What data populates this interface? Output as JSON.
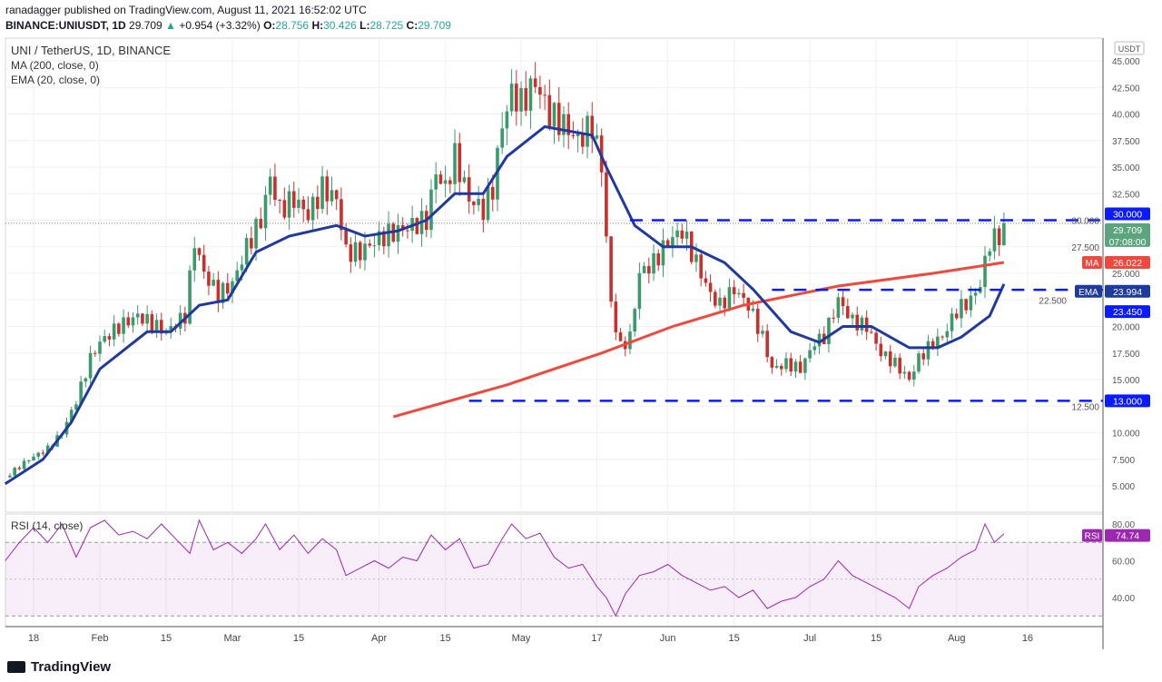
{
  "header": {
    "publisher": "ranadagger published on TradingView.com, August 11, 2021 16:52:02 UTC",
    "symbol": "BINANCE:UNIUSDT, 1D",
    "last": "29.709",
    "change": "+0.954 (+3.32%)",
    "o_label": "O:",
    "o": "28.756",
    "h_label": "H:",
    "h": "30.426",
    "l_label": "L:",
    "l": "28.725",
    "c_label": "C:",
    "c": "29.709"
  },
  "legend": {
    "title": "UNI / TetherUS, 1D, BINANCE",
    "ma": "MA (200, close, 0)",
    "ema": "EMA (20, close, 0)",
    "rsi": "RSI (14, close)"
  },
  "axis": {
    "currency": "USDT",
    "price_ticks": [
      "5.000",
      "7.500",
      "10.000",
      "12.500",
      "15.000",
      "17.500",
      "20.000",
      "22.500",
      "25.000",
      "27.500",
      "30.000",
      "32.500",
      "35.000",
      "37.500",
      "40.000",
      "42.500",
      "45.000"
    ],
    "rsi_ticks": [
      "40.00",
      "60.00",
      "80.00"
    ],
    "time_ticks": [
      [
        "18",
        0
      ],
      [
        "Feb",
        14
      ],
      [
        "15",
        28
      ],
      [
        "Mar",
        42
      ],
      [
        "15",
        56
      ],
      [
        "Apr",
        73
      ],
      [
        "15",
        87
      ],
      [
        "May",
        103
      ],
      [
        "17",
        119
      ],
      [
        "Jun",
        134
      ],
      [
        "15",
        148
      ],
      [
        "Jul",
        164
      ],
      [
        "15",
        178
      ],
      [
        "Aug",
        195
      ],
      [
        "16",
        210
      ]
    ]
  },
  "labels": {
    "level_30": "30.000",
    "price": "29.709",
    "countdown": "07:08:00",
    "ma_tag": "MA",
    "ma_val": "26.022",
    "ema_tag": "EMA",
    "ema_val": "23.994",
    "level_2345": "23.450",
    "level_13": "13.000",
    "rsi_tag": "RSI",
    "rsi_val": "74.74"
  },
  "brand": "TradingView",
  "colors": {
    "up": "#3a9a6a",
    "down": "#c9302c",
    "ema": "#1e3a9e",
    "ma": "#f0483c",
    "level": "#0a1bff",
    "rsi": "#9c27b0"
  },
  "chart_data": {
    "type": "candlestick",
    "title": "UNI / TetherUS, 1D, BINANCE",
    "x_unit": "days since Jan 18 2021",
    "ylim": [
      4,
      47
    ],
    "close": [
      [
        -6,
        5.8
      ],
      [
        -1,
        7.5
      ],
      [
        3,
        8.5
      ],
      [
        6,
        10
      ],
      [
        9,
        13
      ],
      [
        12,
        17
      ],
      [
        14,
        18.5
      ],
      [
        18,
        20
      ],
      [
        22,
        21
      ],
      [
        24,
        20.5
      ],
      [
        28,
        19.5
      ],
      [
        32,
        21
      ],
      [
        34,
        28
      ],
      [
        36,
        25
      ],
      [
        39,
        23
      ],
      [
        42,
        24
      ],
      [
        45,
        27.5
      ],
      [
        48,
        30
      ],
      [
        50,
        34
      ],
      [
        52,
        31
      ],
      [
        55,
        32
      ],
      [
        58,
        30.5
      ],
      [
        61,
        33
      ],
      [
        64,
        32
      ],
      [
        66,
        27
      ],
      [
        69,
        27
      ],
      [
        72,
        28
      ],
      [
        74,
        28.5
      ],
      [
        77,
        29
      ],
      [
        80,
        29.5
      ],
      [
        83,
        30
      ],
      [
        85,
        34.5
      ],
      [
        87,
        33
      ],
      [
        89,
        36
      ],
      [
        92,
        32
      ],
      [
        95,
        31
      ],
      [
        97,
        33
      ],
      [
        99,
        39
      ],
      [
        101,
        42
      ],
      [
        103,
        41
      ],
      [
        106,
        43
      ],
      [
        109,
        40
      ],
      [
        112,
        39
      ],
      [
        115,
        37.5
      ],
      [
        118,
        39
      ],
      [
        120,
        35
      ],
      [
        122,
        22
      ],
      [
        124,
        18
      ],
      [
        126,
        19
      ],
      [
        128,
        25
      ],
      [
        131,
        26
      ],
      [
        134,
        28
      ],
      [
        137,
        29
      ],
      [
        140,
        26
      ],
      [
        143,
        23
      ],
      [
        145,
        22
      ],
      [
        148,
        23.5
      ],
      [
        151,
        22
      ],
      [
        154,
        19
      ],
      [
        156,
        16
      ],
      [
        159,
        16.5
      ],
      [
        162,
        16
      ],
      [
        165,
        18.5
      ],
      [
        167,
        19
      ],
      [
        170,
        22.5
      ],
      [
        173,
        20.5
      ],
      [
        176,
        20
      ],
      [
        179,
        17.5
      ],
      [
        182,
        16.5
      ],
      [
        185,
        15
      ],
      [
        187,
        17
      ],
      [
        190,
        18.5
      ],
      [
        192,
        19
      ],
      [
        195,
        21.5
      ],
      [
        198,
        22.5
      ],
      [
        200,
        24
      ],
      [
        202,
        28
      ],
      [
        204,
        28.5
      ],
      [
        205,
        29.709
      ]
    ],
    "ema20": [
      [
        -6,
        5.2
      ],
      [
        2,
        7.5
      ],
      [
        8,
        11
      ],
      [
        14,
        16
      ],
      [
        24,
        19.5
      ],
      [
        29,
        19.5
      ],
      [
        35,
        22
      ],
      [
        41,
        22.5
      ],
      [
        47,
        27
      ],
      [
        54,
        28.5
      ],
      [
        64,
        29.5
      ],
      [
        70,
        28.5
      ],
      [
        77,
        29
      ],
      [
        83,
        30
      ],
      [
        89,
        32.5
      ],
      [
        95,
        32.5
      ],
      [
        100,
        36
      ],
      [
        108,
        38.8
      ],
      [
        118,
        38
      ],
      [
        121,
        35
      ],
      [
        127,
        29.5
      ],
      [
        133,
        27.5
      ],
      [
        139,
        27.5
      ],
      [
        146,
        26
      ],
      [
        152,
        23.5
      ],
      [
        160,
        19.5
      ],
      [
        166,
        18.5
      ],
      [
        171,
        20
      ],
      [
        177,
        20
      ],
      [
        185,
        18
      ],
      [
        191,
        18
      ],
      [
        196,
        19
      ],
      [
        202,
        21
      ],
      [
        205,
        23.994
      ]
    ],
    "ma200": [
      [
        76,
        11.5
      ],
      [
        100,
        14.5
      ],
      [
        120,
        17.5
      ],
      [
        135,
        20
      ],
      [
        150,
        22
      ],
      [
        170,
        23.8
      ],
      [
        190,
        25
      ],
      [
        205,
        26.022
      ]
    ],
    "levels": [
      {
        "value": 30,
        "from": 126
      },
      {
        "value": 23.45,
        "from": 156
      },
      {
        "value": 13,
        "from": 92
      }
    ],
    "rsi": [
      [
        -6,
        60
      ],
      [
        -3,
        70
      ],
      [
        0,
        78
      ],
      [
        3,
        70
      ],
      [
        6,
        80
      ],
      [
        9,
        62
      ],
      [
        12,
        78
      ],
      [
        15,
        82
      ],
      [
        18,
        74
      ],
      [
        21,
        76
      ],
      [
        24,
        72
      ],
      [
        27,
        80
      ],
      [
        30,
        72
      ],
      [
        33,
        64
      ],
      [
        35,
        82
      ],
      [
        38,
        66
      ],
      [
        41,
        70
      ],
      [
        44,
        64
      ],
      [
        47,
        72
      ],
      [
        49,
        80
      ],
      [
        52,
        66
      ],
      [
        55,
        74
      ],
      [
        58,
        64
      ],
      [
        61,
        72
      ],
      [
        64,
        66
      ],
      [
        66,
        52
      ],
      [
        69,
        56
      ],
      [
        72,
        60
      ],
      [
        75,
        56
      ],
      [
        78,
        62
      ],
      [
        81,
        60
      ],
      [
        84,
        74
      ],
      [
        87,
        66
      ],
      [
        90,
        72
      ],
      [
        93,
        56
      ],
      [
        96,
        58
      ],
      [
        99,
        72
      ],
      [
        101,
        80
      ],
      [
        104,
        72
      ],
      [
        107,
        75
      ],
      [
        110,
        62
      ],
      [
        113,
        56
      ],
      [
        116,
        58
      ],
      [
        119,
        46
      ],
      [
        121,
        40
      ],
      [
        123,
        30
      ],
      [
        125,
        42
      ],
      [
        128,
        52
      ],
      [
        131,
        54
      ],
      [
        134,
        58
      ],
      [
        137,
        52
      ],
      [
        140,
        48
      ],
      [
        143,
        44
      ],
      [
        146,
        46
      ],
      [
        149,
        40
      ],
      [
        152,
        44
      ],
      [
        155,
        34
      ],
      [
        158,
        38
      ],
      [
        161,
        40
      ],
      [
        164,
        46
      ],
      [
        167,
        50
      ],
      [
        170,
        60
      ],
      [
        173,
        52
      ],
      [
        176,
        48
      ],
      [
        179,
        44
      ],
      [
        182,
        40
      ],
      [
        185,
        34
      ],
      [
        187,
        46
      ],
      [
        190,
        52
      ],
      [
        193,
        56
      ],
      [
        196,
        62
      ],
      [
        199,
        66
      ],
      [
        201,
        80
      ],
      [
        203,
        70
      ],
      [
        205,
        74.74
      ]
    ]
  }
}
